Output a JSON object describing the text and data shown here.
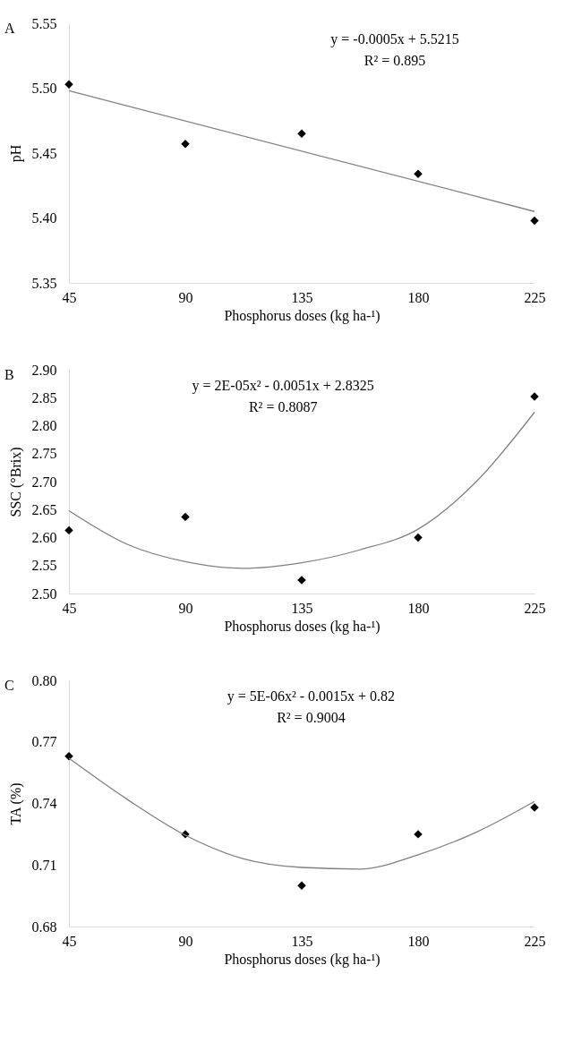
{
  "chart_data": [
    {
      "type": "scatter",
      "xlabel": "Phosphorus doses (kg ha-¹)",
      "ylabel": "pH",
      "grid": false,
      "annotations": [
        "A",
        "y = -0.0005x + 5.5215",
        "R² = 0.895"
      ],
      "x": [
        45,
        90,
        135,
        180,
        225
      ],
      "xlim": [
        45,
        225
      ],
      "xticks": [
        45,
        90,
        135,
        180,
        225
      ],
      "ylim": [
        5.35,
        5.55
      ],
      "yticks": [
        {
          "value": 5.35,
          "label": "5.35"
        },
        {
          "value": 5.4,
          "label": "5.40"
        },
        {
          "value": 5.45,
          "label": "5.45"
        },
        {
          "value": 5.5,
          "label": "5.50"
        },
        {
          "value": 5.55,
          "label": "5.55"
        }
      ],
      "series": [
        {
          "color": "#000000",
          "marker": "diamond",
          "values": [
            5.503,
            5.457,
            5.465,
            5.434,
            5.398
          ]
        },
        {
          "type": "line",
          "marker": "none",
          "color": "#808080",
          "x": [
            45,
            225
          ],
          "values": [
            5.498,
            5.405
          ]
        }
      ]
    },
    {
      "type": "scatter",
      "xlabel": "Phosphorus doses (kg ha-¹)",
      "ylabel": "SSC (°Brix)",
      "grid": false,
      "annotations": [
        "B",
        "y = 2E-05x² - 0.0051x + 2.8325",
        "R² = 0.8087"
      ],
      "x": [
        45,
        90,
        135,
        180,
        225
      ],
      "xlim": [
        45,
        225
      ],
      "xticks": [
        45,
        90,
        135,
        180,
        225
      ],
      "ylim": [
        2.5,
        2.9
      ],
      "yticks": [
        {
          "value": 2.5,
          "label": "2.50"
        },
        {
          "value": 2.55,
          "label": "2.55"
        },
        {
          "value": 2.6,
          "label": "2.60"
        },
        {
          "value": 2.65,
          "label": "2.65"
        },
        {
          "value": 2.7,
          "label": "2.70"
        },
        {
          "value": 2.75,
          "label": "2.75"
        },
        {
          "value": 2.8,
          "label": "2.80"
        },
        {
          "value": 2.85,
          "label": "2.85"
        },
        {
          "value": 2.9,
          "label": "2.90"
        }
      ],
      "series": [
        {
          "color": "#000000",
          "marker": "diamond",
          "values": [
            2.613,
            2.637,
            2.524,
            2.6,
            2.852
          ]
        },
        {
          "type": "line",
          "marker": "none",
          "color": "#808080",
          "x": [
            45,
            67.5,
            90,
            112.5,
            135,
            157.5,
            180,
            202.5,
            225
          ],
          "values": [
            2.648,
            2.588,
            2.557,
            2.545,
            2.555,
            2.578,
            2.615,
            2.7,
            2.824
          ]
        }
      ]
    },
    {
      "type": "scatter",
      "xlabel": "Phosphorus doses (kg ha-¹)",
      "ylabel": "TA (%)",
      "grid": false,
      "annotations": [
        "C",
        "y = 5E-06x² - 0.0015x + 0.82",
        "R² = 0.9004"
      ],
      "x": [
        45,
        90,
        135,
        180,
        225
      ],
      "xlim": [
        45,
        225
      ],
      "xticks": [
        45,
        90,
        135,
        180,
        225
      ],
      "ylim": [
        0.68,
        0.8
      ],
      "yticks": [
        {
          "value": 0.68,
          "label": "0.68"
        },
        {
          "value": 0.71,
          "label": "0.71"
        },
        {
          "value": 0.74,
          "label": "0.74"
        },
        {
          "value": 0.77,
          "label": "0.77"
        },
        {
          "value": 0.8,
          "label": "0.80"
        }
      ],
      "series": [
        {
          "color": "#000000",
          "marker": "diamond",
          "values": [
            0.763,
            0.725,
            0.7,
            0.725,
            0.738
          ]
        },
        {
          "type": "line",
          "marker": "none",
          "color": "#808080",
          "x": [
            45,
            67.5,
            90,
            112.5,
            135,
            157.5,
            180,
            202.5,
            225
          ],
          "values": [
            0.762,
            0.742,
            0.7245,
            0.713,
            0.7088,
            0.708,
            0.715,
            0.726,
            0.741
          ]
        }
      ]
    }
  ]
}
